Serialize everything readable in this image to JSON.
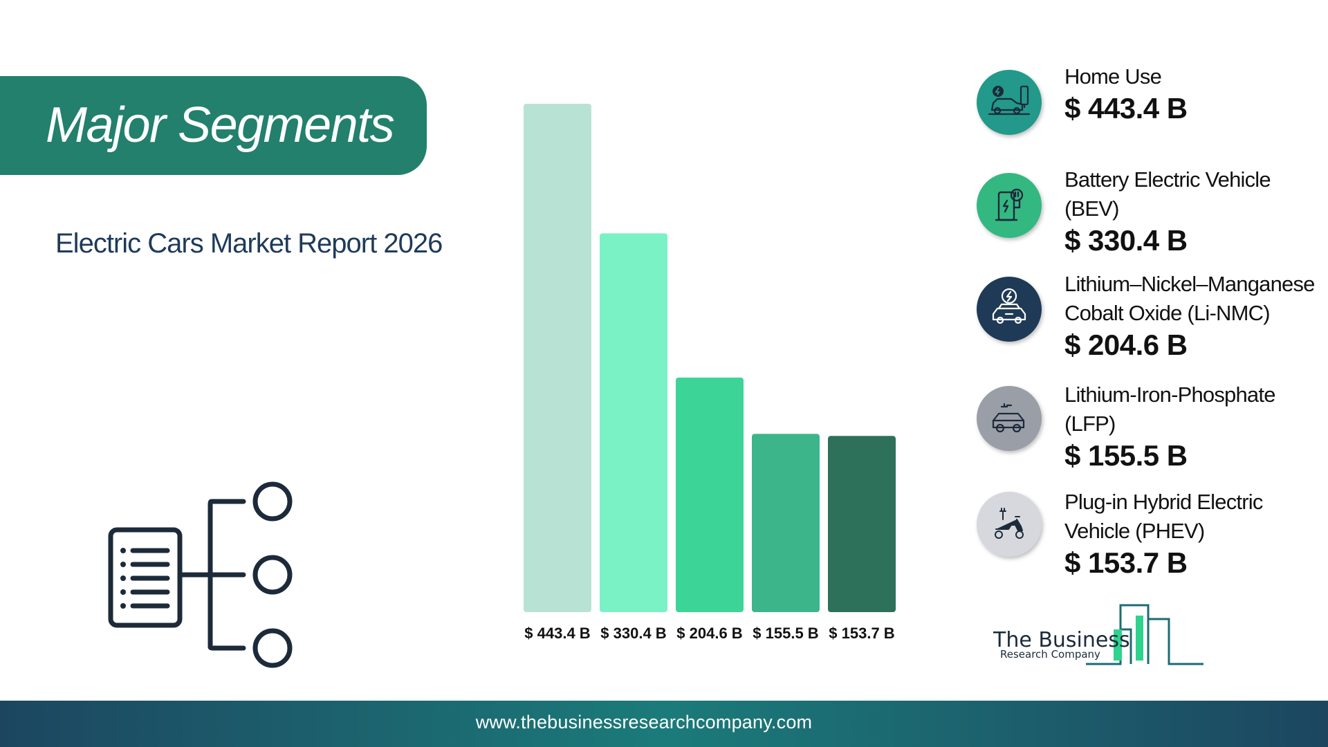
{
  "header": {
    "title": "Major Segments",
    "subtitle": "Electric Cars Market Report 2026"
  },
  "chart_data": {
    "type": "bar",
    "categories": [
      "Home Use",
      "Battery Electric Vehicle (BEV)",
      "Lithium–Nickel–Manganese Cobalt Oxide (Li-NMC)",
      "Lithium-Iron-Phosphate (LFP)",
      "Plug-in Hybrid Electric Vehicle (PHEV)"
    ],
    "values": [
      443.4,
      330.4,
      204.6,
      155.5,
      153.7
    ],
    "data_labels": [
      "$ 443.4 B",
      "$ 330.4 B",
      "$ 204.6 B",
      "$ 155.5 B",
      "$ 153.7 B"
    ],
    "bar_colors": [
      "#b8e3d4",
      "#7af2c6",
      "#3dd498",
      "#3db58a",
      "#2d715a"
    ],
    "unit": "$ B",
    "ylim": [
      0,
      443.4
    ],
    "grid": false,
    "title": "",
    "xlabel": "",
    "ylabel": ""
  },
  "legend": {
    "items": [
      {
        "label_lines": [
          "Home Use"
        ],
        "value": "$ 443.4 B",
        "icon": "ev-charging-car-icon",
        "color": "#22998a"
      },
      {
        "label_lines": [
          "Battery Electric Vehicle",
          "(BEV)"
        ],
        "value": "$ 330.4 B",
        "icon": "charging-station-icon",
        "color": "#34b882"
      },
      {
        "label_lines": [
          "Lithium–Nickel–Manganese",
          "Cobalt Oxide (Li-NMC)"
        ],
        "value": "$ 204.6 B",
        "icon": "electric-car-icon",
        "color": "#1e3a56"
      },
      {
        "label_lines": [
          "Lithium-Iron-Phosphate",
          "(LFP)"
        ],
        "value": "$ 155.5 B",
        "icon": "plug-in-car-icon",
        "color": "#9a9ea7"
      },
      {
        "label_lines": [
          "Plug-in Hybrid Electric",
          "Vehicle (PHEV)"
        ],
        "value": "$ 153.7 B",
        "icon": "electric-scooter-icon",
        "color": "#d7d8de"
      }
    ]
  },
  "logo": {
    "line1": "The Business",
    "line2": "Research Company"
  },
  "footer": {
    "url": "www.thebusinessresearchcompany.com"
  },
  "colors": {
    "banner": "#22806d",
    "subtitle": "#1f3a5a",
    "footer_dark": "#1c4660",
    "footer_mid": "#1b7b7a"
  }
}
